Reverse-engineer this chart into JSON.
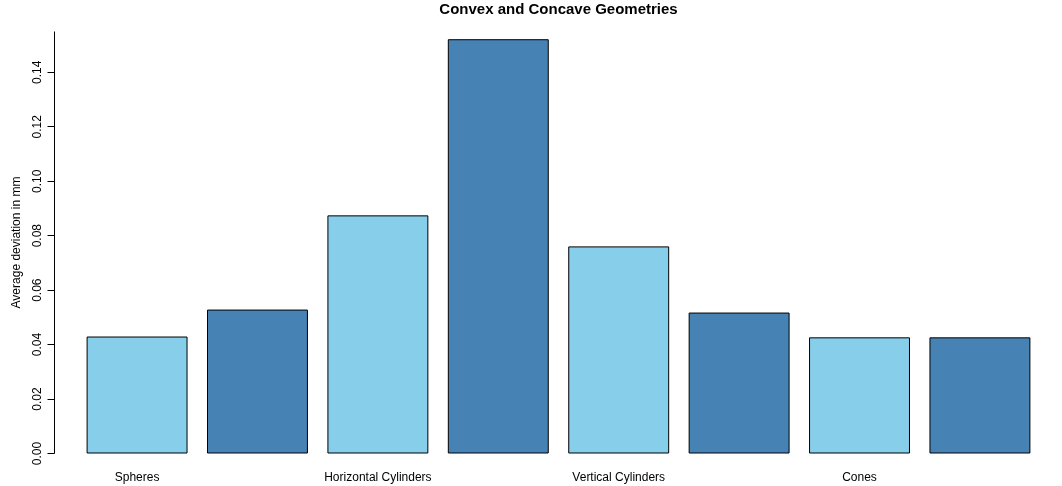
{
  "chart_data": {
    "type": "bar",
    "title": "Convex and Concave Geometries",
    "ylabel": "Average deviation in mm",
    "categories": [
      "Spheres",
      null,
      "Horizontal Cylinders",
      null,
      "Vertical Cylinders",
      null,
      "Cones",
      null
    ],
    "values": [
      0.0426,
      0.0525,
      0.0871,
      0.1518,
      0.0757,
      0.0514,
      0.0423,
      0.0423
    ],
    "colors": [
      "#87ceeb",
      "#4682b4",
      "#87ceeb",
      "#4682b4",
      "#87ceeb",
      "#4682b4",
      "#87ceeb",
      "#4682b4"
    ],
    "ylim": [
      0,
      0.155
    ],
    "yticks": [
      {
        "value": 0,
        "label": "0.00"
      },
      {
        "value": 0.02,
        "label": "0.02"
      },
      {
        "value": 0.04,
        "label": "0.04"
      },
      {
        "value": 0.06,
        "label": "0.06"
      },
      {
        "value": 0.08,
        "label": "0.08"
      },
      {
        "value": 0.1,
        "label": "0.10"
      },
      {
        "value": 0.12,
        "label": "0.12"
      },
      {
        "value": 0.14,
        "label": "0.14"
      }
    ],
    "grid": false
  }
}
